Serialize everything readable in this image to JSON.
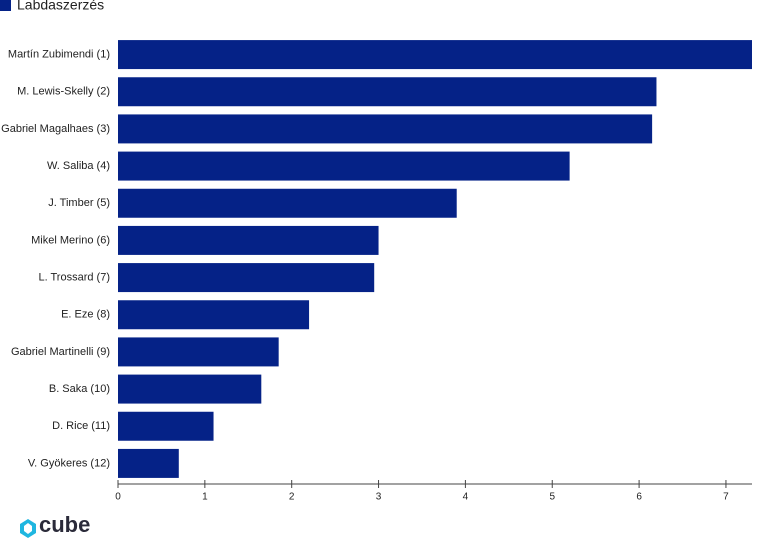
{
  "chart_data": {
    "type": "bar",
    "orientation": "horizontal",
    "categories": [
      "Martín Zubimendi (1)",
      "M. Lewis-Skelly (2)",
      "Gabriel Magalhaes (3)",
      "W. Saliba (4)",
      "J. Timber (5)",
      "Mikel Merino (6)",
      "L. Trossard (7)",
      "E. Eze (8)",
      "Gabriel Martinelli (9)",
      "B. Saka (10)",
      "D. Rice (11)",
      "V. Gyökeres (12)"
    ],
    "series": [
      {
        "name": "Labdaszerzés",
        "color": "#052287",
        "values": [
          7.3,
          6.2,
          6.15,
          5.2,
          3.9,
          3.0,
          2.95,
          2.2,
          1.85,
          1.65,
          1.1,
          0.7
        ]
      }
    ],
    "xlim": [
      0,
      7.3
    ],
    "xticks": [
      0,
      1,
      2,
      3,
      4,
      5,
      6,
      7
    ],
    "legend": "top-left"
  },
  "logo": "cube"
}
